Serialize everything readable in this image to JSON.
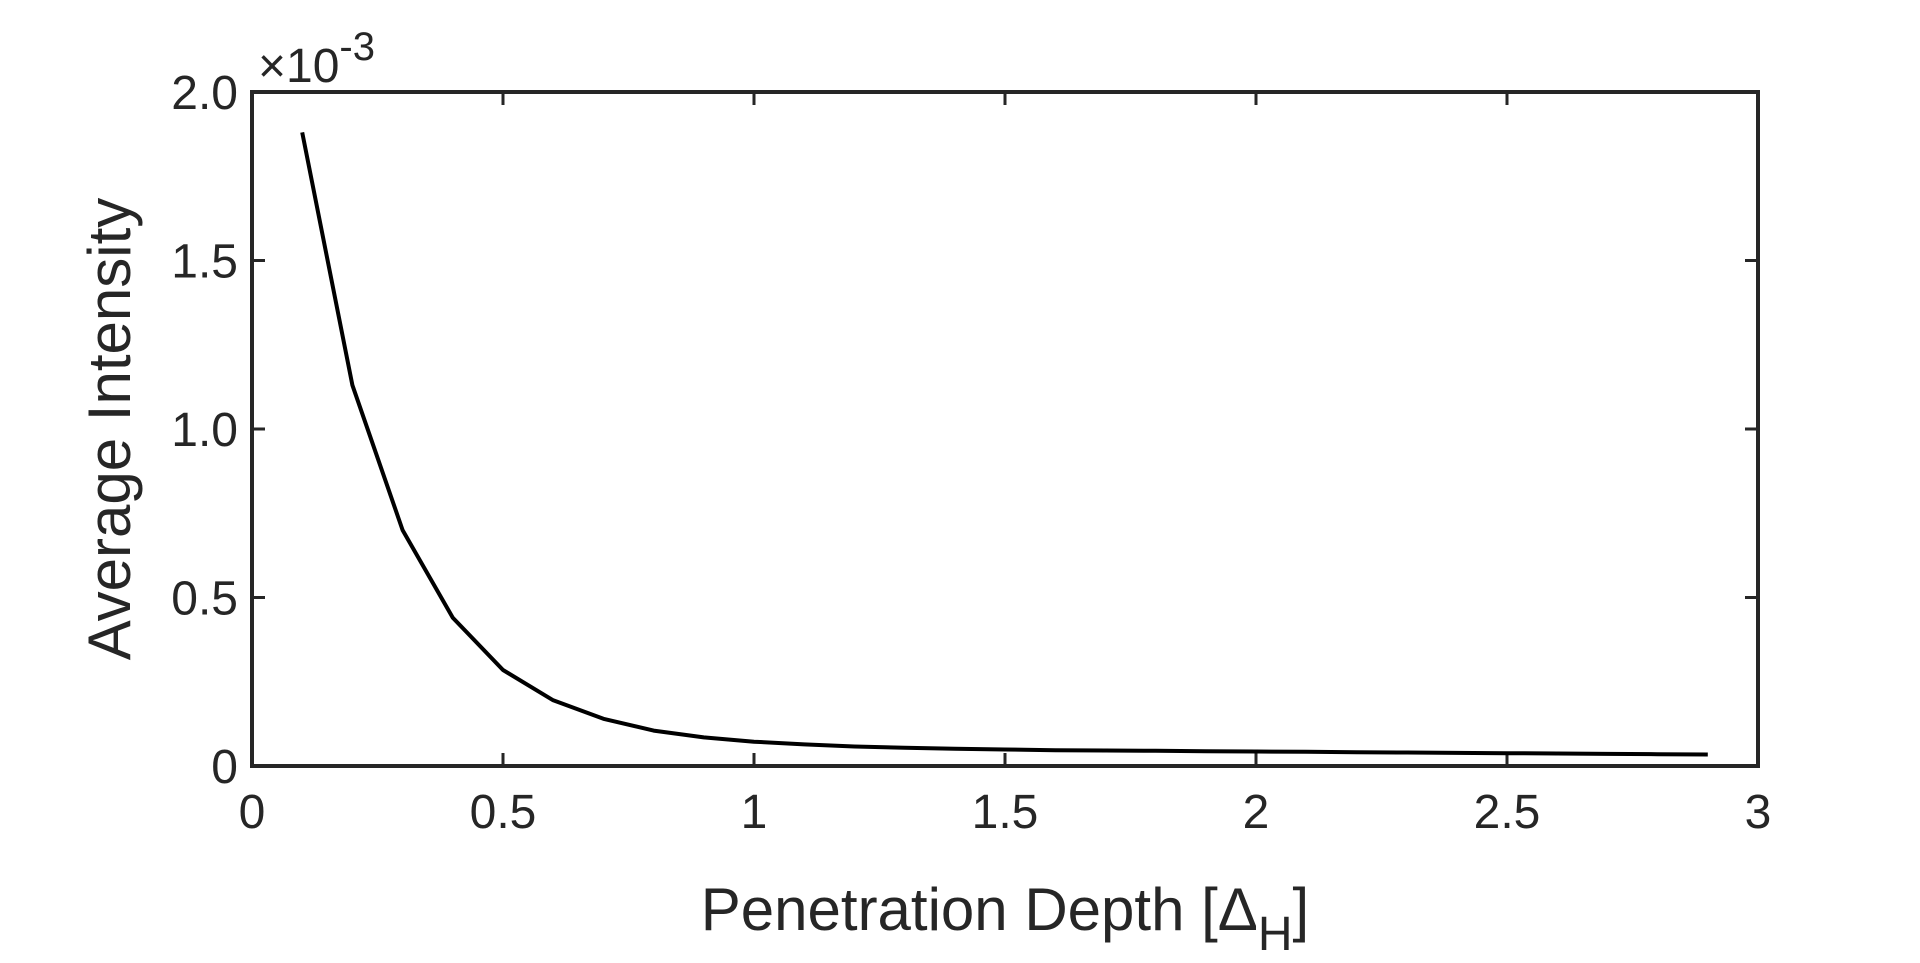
{
  "chart_data": {
    "type": "line",
    "title": "",
    "xlabel": "Penetration Depth [Δ",
    "xlabel_subscript": "H",
    "xlabel_close": "]",
    "ylabel": "Average Intensity",
    "y_exponent": {
      "base": "×10",
      "power": "-3"
    },
    "xlim": [
      0,
      3
    ],
    "ylim": [
      0,
      2.0
    ],
    "xticks": [
      0,
      0.5,
      1,
      1.5,
      2,
      2.5,
      3
    ],
    "xtick_labels": [
      "0",
      "0.5",
      "1",
      "1.5",
      "2",
      "2.5",
      "3"
    ],
    "yticks": [
      0,
      0.5,
      1.0,
      1.5,
      2.0
    ],
    "ytick_labels": [
      "0",
      "0.5",
      "1.0",
      "1.5",
      "2.0"
    ],
    "grid": false,
    "line_color": "#000000",
    "axis_color": "#262626",
    "series": [
      {
        "x": [
          0.1,
          0.2,
          0.3,
          0.4,
          0.5,
          0.6,
          0.7,
          0.8,
          0.9,
          1.0,
          1.1,
          1.2,
          1.3,
          1.4,
          1.5,
          1.6,
          1.7,
          1.8,
          1.9,
          2.0,
          2.1,
          2.2,
          2.3,
          2.4,
          2.5,
          2.6,
          2.7,
          2.8,
          2.9
        ],
        "values": [
          1.88,
          1.13,
          0.7,
          0.44,
          0.285,
          0.195,
          0.14,
          0.105,
          0.085,
          0.072,
          0.064,
          0.058,
          0.054,
          0.051,
          0.049,
          0.047,
          0.046,
          0.045,
          0.044,
          0.043,
          0.042,
          0.041,
          0.04,
          0.039,
          0.038,
          0.037,
          0.036,
          0.035,
          0.034
        ]
      }
    ]
  }
}
